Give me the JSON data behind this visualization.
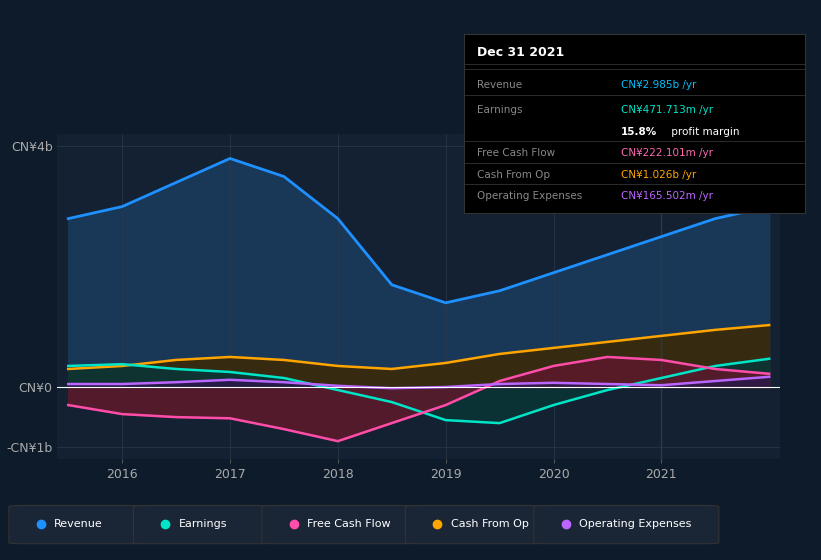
{
  "background_color": "#0d1b2a",
  "chart_area_color": "#132133",
  "info_box": {
    "date": "Dec 31 2021"
  },
  "years": [
    2015.5,
    2016.0,
    2016.5,
    2017.0,
    2017.5,
    2018.0,
    2018.5,
    2019.0,
    2019.5,
    2020.0,
    2020.5,
    2021.0,
    2021.5,
    2022.0
  ],
  "revenue": [
    2.8,
    3.0,
    3.4,
    3.8,
    3.5,
    2.8,
    1.7,
    1.4,
    1.6,
    1.9,
    2.2,
    2.5,
    2.8,
    3.0
  ],
  "earnings": [
    0.35,
    0.38,
    0.3,
    0.25,
    0.15,
    -0.05,
    -0.25,
    -0.55,
    -0.6,
    -0.3,
    -0.05,
    0.15,
    0.35,
    0.47
  ],
  "free_cash_flow": [
    -0.3,
    -0.45,
    -0.5,
    -0.52,
    -0.7,
    -0.9,
    -0.6,
    -0.3,
    0.1,
    0.35,
    0.5,
    0.45,
    0.3,
    0.22
  ],
  "cash_from_op": [
    0.3,
    0.35,
    0.45,
    0.5,
    0.45,
    0.35,
    0.3,
    0.4,
    0.55,
    0.65,
    0.75,
    0.85,
    0.95,
    1.03
  ],
  "operating_expenses": [
    0.05,
    0.05,
    0.08,
    0.12,
    0.08,
    0.02,
    -0.02,
    0.0,
    0.05,
    0.07,
    0.05,
    0.03,
    0.1,
    0.17
  ],
  "revenue_color": "#1e90ff",
  "revenue_fill": "#1a3a5c",
  "earnings_color": "#00e5c8",
  "earnings_fill": "#0a3535",
  "free_cash_flow_color": "#ff4daa",
  "free_cash_flow_fill": "#5a1a2a",
  "cash_from_op_color": "#ffa500",
  "cash_from_op_fill": "#3a2a0a",
  "operating_expenses_color": "#bb66ff",
  "operating_expenses_fill": "#2a1a4a",
  "ylim": [
    -1.2,
    4.2
  ],
  "yticks": [
    -1.0,
    0.0,
    4.0
  ],
  "ytick_labels": [
    "-CN¥1b",
    "CN¥0",
    "CN¥4b"
  ],
  "xticks": [
    2016,
    2017,
    2018,
    2019,
    2020,
    2021
  ],
  "legend_items": [
    {
      "label": "Revenue",
      "color": "#1e90ff"
    },
    {
      "label": "Earnings",
      "color": "#00e5c8"
    },
    {
      "label": "Free Cash Flow",
      "color": "#ff4daa"
    },
    {
      "label": "Cash From Op",
      "color": "#ffa500"
    },
    {
      "label": "Operating Expenses",
      "color": "#bb66ff"
    }
  ],
  "info_rows": [
    {
      "label": "Revenue",
      "value": "CN¥2.985b /yr",
      "value_color": "#00bfff"
    },
    {
      "label": "Earnings",
      "value": "CN¥471.713m /yr",
      "value_color": "#00e5c8"
    },
    {
      "label": "",
      "value": "15.8% profit margin",
      "value_color": "#ffffff"
    },
    {
      "label": "Free Cash Flow",
      "value": "CN¥222.101m /yr",
      "value_color": "#ff69b4"
    },
    {
      "label": "Cash From Op",
      "value": "CN¥1.026b /yr",
      "value_color": "#ffa500"
    },
    {
      "label": "Operating Expenses",
      "value": "CN¥165.502m /yr",
      "value_color": "#bb66ff"
    }
  ]
}
